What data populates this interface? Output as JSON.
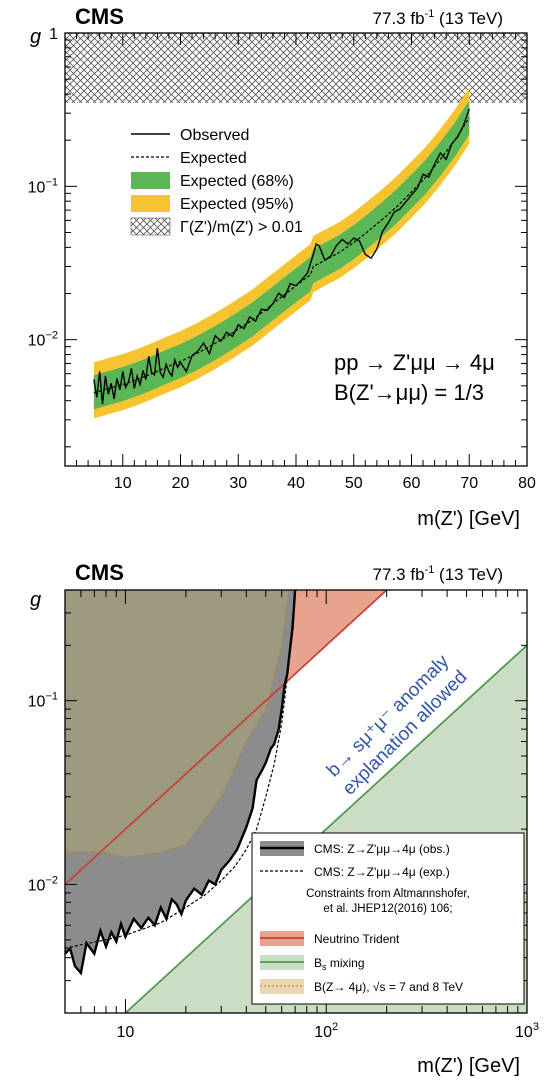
{
  "chart_data": [
    {
      "type": "line",
      "header": {
        "experiment": "CMS",
        "lumi": "77.3 fb",
        "lumi_sup": "-1",
        "energy": " (13 TeV)"
      },
      "xlabel": "m(Z') [GeV]",
      "ylabel": "g",
      "xlim": [
        0,
        80
      ],
      "ylim": [
        0.0015,
        1
      ],
      "yscale": "log",
      "x_ticks": [
        "10",
        "20",
        "30",
        "40",
        "50",
        "60",
        "70",
        "80"
      ],
      "y_ticks": [
        {
          "base": "1",
          "exp": ""
        },
        {
          "base": "10",
          "exp": "−1"
        },
        {
          "base": "10",
          "exp": "−2"
        }
      ],
      "excluded_region": {
        "label": "Γ(Z')/m(Z') > 0.01",
        "g_min": 0.35
      },
      "legend": {
        "position": "top-left",
        "entries": [
          "Observed",
          "Expected",
          "Expected (68%)",
          "Expected (95%)",
          "Γ(Z')/m(Z') > 0.01"
        ]
      },
      "annotation_lines": [
        "pp → Z'μμ → 4μ",
        "B(Z'→μμ) = 1/3"
      ],
      "colors": {
        "band68": "#5bb655",
        "band95": "#f6c431",
        "observed": "#000000",
        "expected": "#000000"
      },
      "expected_x": [
        5,
        7.5,
        10,
        12.5,
        15,
        17.5,
        20,
        22.5,
        25,
        27.5,
        30,
        32.5,
        35,
        37.5,
        40,
        42.5,
        43,
        45,
        47.5,
        50,
        52.5,
        55,
        57.5,
        60,
        62.5,
        65,
        67.5,
        70
      ],
      "expected_y": [
        0.0045,
        0.0048,
        0.0051,
        0.0055,
        0.006,
        0.0066,
        0.0072,
        0.008,
        0.009,
        0.0102,
        0.0117,
        0.0135,
        0.016,
        0.019,
        0.0225,
        0.0265,
        0.03,
        0.033,
        0.037,
        0.043,
        0.051,
        0.061,
        0.074,
        0.092,
        0.115,
        0.15,
        0.2,
        0.28
      ],
      "band68_factor": [
        0.78,
        1.3
      ],
      "band95_factor": [
        0.68,
        1.58
      ],
      "observed_x": [
        5,
        5.5,
        6,
        6.5,
        7,
        7.5,
        8,
        8.5,
        9,
        9.5,
        10,
        10.5,
        11,
        11.5,
        12,
        12.5,
        13,
        13.5,
        14,
        14.5,
        15,
        15.5,
        16,
        16.5,
        17,
        17.5,
        18,
        18.5,
        19,
        19.5,
        20,
        21,
        22,
        23,
        24,
        25,
        26,
        27,
        28,
        29,
        30,
        31,
        32,
        33,
        34,
        35,
        36,
        37,
        38,
        39,
        40,
        41,
        42,
        43,
        43.5,
        44,
        45,
        46,
        47,
        48,
        49,
        50,
        51,
        52,
        53,
        54,
        55,
        56,
        57,
        58,
        59,
        60,
        61,
        62,
        63,
        64,
        65,
        66,
        67,
        68,
        69,
        70
      ],
      "observed_y": [
        0.0055,
        0.0042,
        0.0062,
        0.0038,
        0.0058,
        0.0044,
        0.0052,
        0.0041,
        0.0056,
        0.0047,
        0.0062,
        0.0049,
        0.0053,
        0.0065,
        0.0048,
        0.0058,
        0.0051,
        0.0063,
        0.0055,
        0.0078,
        0.0061,
        0.0059,
        0.0088,
        0.0061,
        0.0057,
        0.0069,
        0.0062,
        0.0058,
        0.0074,
        0.0066,
        0.0071,
        0.0062,
        0.0079,
        0.0084,
        0.0095,
        0.0081,
        0.0106,
        0.0098,
        0.0112,
        0.0105,
        0.0125,
        0.0118,
        0.0141,
        0.0132,
        0.0158,
        0.0155,
        0.0172,
        0.0201,
        0.0188,
        0.0232,
        0.0225,
        0.0246,
        0.0273,
        0.036,
        0.042,
        0.041,
        0.033,
        0.035,
        0.041,
        0.045,
        0.042,
        0.046,
        0.044,
        0.036,
        0.034,
        0.039,
        0.051,
        0.058,
        0.068,
        0.071,
        0.079,
        0.088,
        0.097,
        0.12,
        0.115,
        0.14,
        0.165,
        0.15,
        0.19,
        0.21,
        0.25,
        0.32
      ]
    },
    {
      "type": "area",
      "header": {
        "experiment": "CMS",
        "lumi": "77.3 fb",
        "lumi_sup": "-1",
        "energy": " (13 TeV)"
      },
      "xlabel": "m(Z') [GeV]",
      "ylabel": "g",
      "xscale": "log",
      "yscale": "log",
      "xlim": [
        5,
        1000
      ],
      "ylim": [
        0.002,
        0.4
      ],
      "x_ticks": [
        {
          "base": "10",
          "exp": ""
        },
        {
          "base": "10",
          "exp": "2"
        },
        {
          "base": "10",
          "exp": "3"
        }
      ],
      "y_ticks": [
        {
          "base": "10",
          "exp": "−1"
        },
        {
          "base": "10",
          "exp": "−2"
        }
      ],
      "annotation_lines": [
        "b→ sμ⁺μ⁻ anomaly",
        "explanation allowed"
      ],
      "legend": {
        "position": "bottom-right",
        "entries": [
          "CMS: Z→Z'μμ→4μ (obs.)",
          "CMS: Z→Z'μμ→4μ (exp.)",
          "Neutrino Trident",
          "B_s mixing",
          "B(Z→ 4μ), √s = 7 and 8 TeV"
        ],
        "header_lines": [
          "Constraints from Altmannshofer,",
          "et al. JHEP12(2016) 106;"
        ],
        "bs_label": {
          "main": "B",
          "sub": "s",
          "rest": " mixing"
        }
      },
      "colors": {
        "cms_fill": "#8c8c8c",
        "trident_fill": "#e8a38c",
        "trident_line": "#c8403a",
        "bs_fill": "#cbdec5",
        "bs_line": "#4f9a50",
        "z4mu_fill": "#ead6b0",
        "z4mu_line": "#a8883a",
        "overlap_dark": "#8a6e60",
        "overlap_light": "#9d9a80",
        "annotation": "#3355aa"
      },
      "trident_line": {
        "x": [
          5,
          200
        ],
        "g": [
          0.01,
          0.4
        ]
      },
      "bs_line": {
        "x": [
          10,
          1000
        ],
        "g": [
          0.002,
          0.2
        ]
      },
      "z4mu_boundary": {
        "x": [
          5,
          8,
          10,
          15,
          20,
          30,
          40,
          50,
          60,
          65
        ],
        "g": [
          0.015,
          0.015,
          0.014,
          0.015,
          0.0165,
          0.03,
          0.06,
          0.09,
          0.2,
          0.4
        ]
      },
      "cms_expected": {
        "x": [
          5,
          6,
          8,
          10,
          15,
          20,
          25,
          30,
          35,
          40,
          45,
          50,
          55,
          60,
          62,
          65,
          70
        ],
        "g": [
          0.0045,
          0.0047,
          0.005,
          0.0053,
          0.0062,
          0.0075,
          0.0088,
          0.0105,
          0.0125,
          0.0155,
          0.02,
          0.03,
          0.045,
          0.075,
          0.1,
          0.16,
          0.4
        ]
      },
      "cms_observed": {
        "x": [
          5,
          5.3,
          5.6,
          6,
          6.4,
          7,
          7.5,
          8,
          8.5,
          9,
          9.5,
          10,
          11,
          12,
          13,
          14,
          15,
          16,
          17,
          18,
          19,
          20,
          22,
          24,
          26,
          28,
          30,
          33,
          36,
          40,
          43,
          45,
          48,
          50,
          53,
          55,
          58,
          60,
          62,
          64,
          66,
          68,
          70
        ],
        "g": [
          0.0042,
          0.0045,
          0.0036,
          0.0033,
          0.0048,
          0.0042,
          0.0056,
          0.0046,
          0.0055,
          0.0049,
          0.0061,
          0.0052,
          0.0065,
          0.0058,
          0.0066,
          0.006,
          0.0075,
          0.0065,
          0.0083,
          0.0078,
          0.0069,
          0.0082,
          0.0095,
          0.0088,
          0.0105,
          0.01,
          0.012,
          0.0135,
          0.0155,
          0.0205,
          0.026,
          0.037,
          0.042,
          0.046,
          0.055,
          0.058,
          0.07,
          0.09,
          0.12,
          0.14,
          0.19,
          0.25,
          0.4
        ]
      }
    }
  ]
}
